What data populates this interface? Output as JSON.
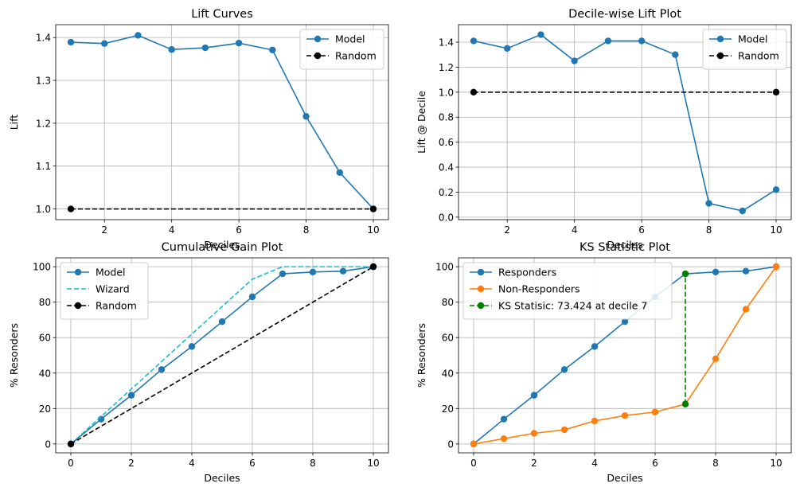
{
  "colors": {
    "blue": "#1f77b4",
    "orange": "#ff7f0e",
    "cyan": "#17becf",
    "green": "#008000",
    "black": "#000000",
    "grid": "#b0b0b0"
  },
  "chart_data": [
    {
      "type": "line",
      "title": "Lift Curves",
      "xlabel": "Deciles",
      "ylabel": "Lift",
      "xlim": [
        0.55,
        10.45
      ],
      "ylim": [
        0.975,
        1.43
      ],
      "xticks": [
        2,
        4,
        6,
        8,
        10
      ],
      "yticks": [
        1.0,
        1.1,
        1.2,
        1.3,
        1.4
      ],
      "ytick_labels": [
        "1.0",
        "1.1",
        "1.2",
        "1.3",
        "1.4"
      ],
      "grid": true,
      "legend_position": "upper-right",
      "series": [
        {
          "name": "Model",
          "style": "solid-marker",
          "color": "#1f77b4",
          "x": [
            1,
            2,
            3,
            4,
            5,
            6,
            7,
            8,
            9,
            10
          ],
          "y": [
            1.389,
            1.386,
            1.405,
            1.372,
            1.376,
            1.387,
            1.371,
            1.216,
            1.085,
            1.0
          ]
        },
        {
          "name": "Random",
          "style": "dashed-endpoints",
          "color": "#000000",
          "x": [
            1,
            10
          ],
          "y": [
            1.0,
            1.0
          ]
        }
      ]
    },
    {
      "type": "line",
      "title": "Decile-wise Lift Plot",
      "xlabel": "Deciles",
      "ylabel": "Lift @ Decile",
      "xlim": [
        0.55,
        10.45
      ],
      "ylim": [
        -0.02,
        1.54
      ],
      "xticks": [
        2,
        4,
        6,
        8,
        10
      ],
      "yticks": [
        0.0,
        0.2,
        0.4,
        0.6,
        0.8,
        1.0,
        1.2,
        1.4
      ],
      "ytick_labels": [
        "0.0",
        "0.2",
        "0.4",
        "0.6",
        "0.8",
        "1.0",
        "1.2",
        "1.4"
      ],
      "grid": true,
      "legend_position": "upper-right",
      "series": [
        {
          "name": "Model",
          "style": "solid-marker",
          "color": "#1f77b4",
          "x": [
            1,
            2,
            3,
            4,
            5,
            6,
            7,
            8,
            9,
            10
          ],
          "y": [
            1.41,
            1.35,
            1.46,
            1.25,
            1.41,
            1.41,
            1.3,
            0.11,
            0.05,
            0.22
          ]
        },
        {
          "name": "Random",
          "style": "dashed-endpoints",
          "color": "#000000",
          "x": [
            1,
            10
          ],
          "y": [
            1.0,
            1.0
          ]
        }
      ]
    },
    {
      "type": "line",
      "title": "Cumulative Gain Plot",
      "xlabel": "Deciles",
      "ylabel": "% Resonders",
      "xlim": [
        -0.5,
        10.5
      ],
      "ylim": [
        -5,
        105
      ],
      "xticks": [
        0,
        2,
        4,
        6,
        8,
        10
      ],
      "yticks": [
        0,
        20,
        40,
        60,
        80,
        100
      ],
      "grid": true,
      "legend_position": "upper-left",
      "series": [
        {
          "name": "Model",
          "style": "solid-marker",
          "color": "#1f77b4",
          "x": [
            0,
            1,
            2,
            3,
            4,
            5,
            6,
            7,
            8,
            9,
            10
          ],
          "y": [
            0,
            14,
            27.5,
            42,
            55,
            69,
            83,
            96,
            97,
            97.5,
            100
          ]
        },
        {
          "name": "Wizard",
          "style": "dashed",
          "color": "#17becf",
          "x": [
            0,
            1,
            2,
            3,
            4,
            5,
            6,
            7,
            8,
            9,
            10
          ],
          "y": [
            0,
            15.5,
            31,
            46.5,
            62,
            77.5,
            93,
            100,
            100,
            100,
            100
          ]
        },
        {
          "name": "Random",
          "style": "dashed-endpoints",
          "color": "#000000",
          "x": [
            0,
            10
          ],
          "y": [
            0,
            100
          ]
        }
      ]
    },
    {
      "type": "line",
      "title": "KS Statistic Plot",
      "xlabel": "Deciles",
      "ylabel": "% Resonders",
      "xlim": [
        -0.5,
        10.5
      ],
      "ylim": [
        -5,
        105
      ],
      "xticks": [
        0,
        2,
        4,
        6,
        8,
        10
      ],
      "yticks": [
        0,
        20,
        40,
        60,
        80,
        100
      ],
      "grid": true,
      "legend_position": "upper-left",
      "series": [
        {
          "name": "Responders",
          "style": "solid-marker",
          "color": "#1f77b4",
          "x": [
            0,
            1,
            2,
            3,
            4,
            5,
            6,
            7,
            8,
            9,
            10
          ],
          "y": [
            0,
            14,
            27.5,
            42,
            55,
            69,
            83,
            96,
            97,
            97.5,
            100
          ]
        },
        {
          "name": "Non-Responders",
          "style": "solid-marker",
          "color": "#ff7f0e",
          "x": [
            0,
            1,
            2,
            3,
            4,
            5,
            6,
            7,
            8,
            9,
            10
          ],
          "y": [
            0,
            3,
            6,
            8,
            13,
            16,
            18,
            22.5,
            48,
            76,
            100
          ]
        },
        {
          "name": "KS Statisic: 73.424 at decile 7",
          "style": "dashed-endpoints",
          "color": "#008000",
          "x": [
            7,
            7
          ],
          "y": [
            22.5,
            96
          ]
        }
      ]
    }
  ]
}
